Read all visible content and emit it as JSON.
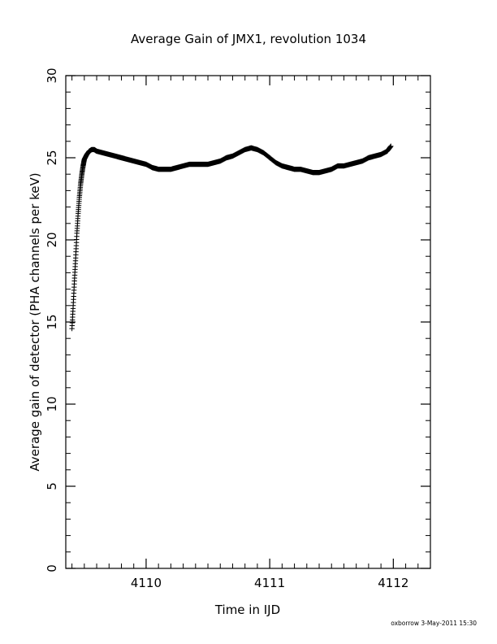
{
  "chart_data": {
    "type": "scatter",
    "title": "Average Gain of JMX1, revolution 1034",
    "xlabel": "Time in IJD",
    "ylabel": "Average gain of detector (PHA channels per keV)",
    "xlim": [
      4109.35,
      4112.3
    ],
    "ylim": [
      0,
      30
    ],
    "x_ticks": [
      4110,
      4111,
      4112
    ],
    "y_ticks": [
      0,
      5,
      10,
      15,
      20,
      25,
      30
    ],
    "x_minor_step": 0.1,
    "y_minor_step": 1,
    "marker": "plus",
    "grid": false,
    "legend": "none",
    "series": [
      {
        "x": [
          4109.4,
          4109.41,
          4109.42,
          4109.43,
          4109.44,
          4109.45,
          4109.46,
          4109.47,
          4109.48,
          4109.49,
          4109.5,
          4109.52,
          4109.54,
          4109.56,
          4109.58,
          4109.6,
          4109.65,
          4109.7,
          4109.75,
          4109.8,
          4109.85,
          4109.9,
          4109.95,
          4110.0,
          4110.05,
          4110.1,
          4110.15,
          4110.2,
          4110.25,
          4110.3,
          4110.35,
          4110.4,
          4110.45,
          4110.5,
          4110.55,
          4110.6,
          4110.65,
          4110.7,
          4110.75,
          4110.8,
          4110.85,
          4110.9,
          4110.95,
          4111.0,
          4111.05,
          4111.1,
          4111.15,
          4111.2,
          4111.25,
          4111.3,
          4111.35,
          4111.4,
          4111.45,
          4111.5,
          4111.55,
          4111.6,
          4111.65,
          4111.7,
          4111.75,
          4111.8,
          4111.85,
          4111.9,
          4111.95,
          4111.98
        ],
        "y": [
          14.6,
          16.0,
          17.5,
          18.9,
          20.4,
          21.6,
          22.6,
          23.4,
          24.0,
          24.5,
          24.9,
          25.2,
          25.4,
          25.5,
          25.5,
          25.4,
          25.3,
          25.2,
          25.1,
          25.0,
          24.9,
          24.8,
          24.7,
          24.6,
          24.4,
          24.3,
          24.3,
          24.3,
          24.4,
          24.5,
          24.6,
          24.6,
          24.6,
          24.6,
          24.7,
          24.8,
          25.0,
          25.1,
          25.3,
          25.5,
          25.6,
          25.5,
          25.3,
          25.0,
          24.7,
          24.5,
          24.4,
          24.3,
          24.3,
          24.2,
          24.1,
          24.1,
          24.2,
          24.3,
          24.5,
          24.5,
          24.6,
          24.7,
          24.8,
          25.0,
          25.1,
          25.2,
          25.4,
          25.7
        ]
      }
    ],
    "footer": "oxborrow  3-May-2011 15:30"
  }
}
